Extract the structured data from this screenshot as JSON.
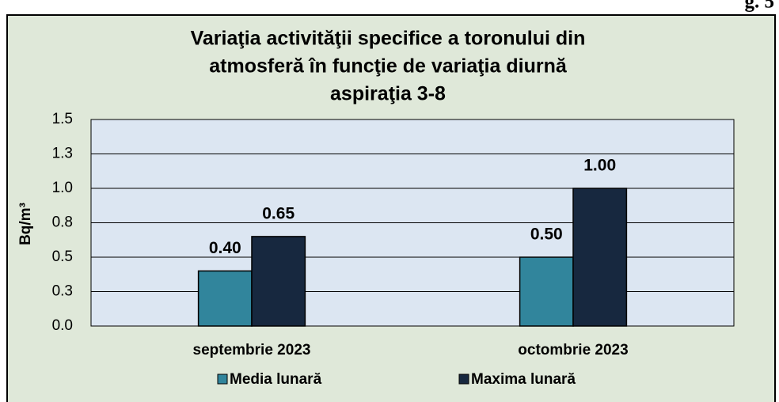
{
  "figure_label": "g. 5",
  "chart_data": {
    "type": "bar",
    "title": [
      "Variaţia activităţii specifice a toronului din",
      "atmosferă în funcţie de variaţia diurnă",
      "aspiraţia 3-8"
    ],
    "y_label": "Bq/m³",
    "categories": [
      "septembrie 2023",
      "octombrie 2023"
    ],
    "series": [
      {
        "name": "Media lunară",
        "color": "#31859c",
        "values": [
          0.4,
          0.5
        ],
        "value_labels": [
          "0.40",
          "0.50"
        ]
      },
      {
        "name": "Maxima lunară",
        "color": "#17283f",
        "values": [
          0.65,
          1.0
        ],
        "value_labels": [
          "0.65",
          "1.00"
        ]
      }
    ],
    "ylim": [
      0,
      1.5
    ],
    "yticks": [
      {
        "value": 0,
        "label": "0.0"
      },
      {
        "value": 0.25,
        "label": "0.3"
      },
      {
        "value": 0.5,
        "label": "0.5"
      },
      {
        "value": 0.75,
        "label": "0.8"
      },
      {
        "value": 1.0,
        "label": "1.0"
      },
      {
        "value": 1.25,
        "label": "1.3"
      },
      1.5
    ],
    "grid": true,
    "legend": "bottom"
  }
}
